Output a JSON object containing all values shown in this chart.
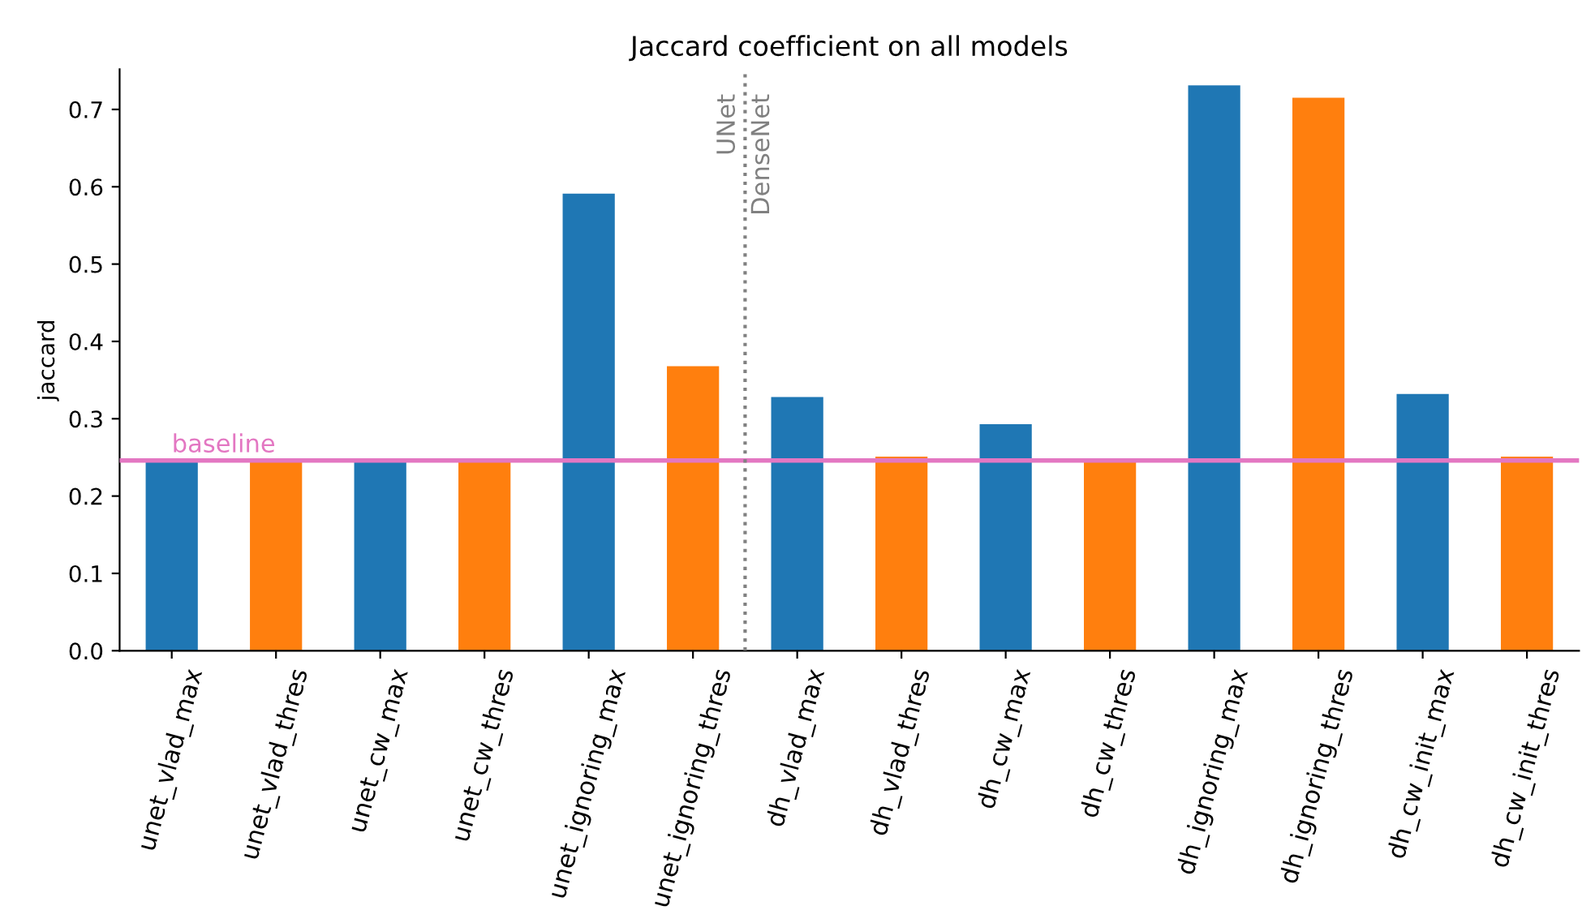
{
  "chart_data": {
    "type": "bar",
    "title": "Jaccard coefficient on all models",
    "ylabel": "jaccard",
    "categories": [
      "unet_vlad_max",
      "unet_vlad_thres",
      "unet_cw_max",
      "unet_cw_thres",
      "unet_ignoring_max",
      "unet_ignoring_thres",
      "dh_vlad_max",
      "dh_vlad_thres",
      "dh_cw_max",
      "dh_cw_thres",
      "dh_ignoring_max",
      "dh_ignoring_thres",
      "dh_cw_init_max",
      "dh_cw_init_thres"
    ],
    "values": [
      0.245,
      0.245,
      0.245,
      0.245,
      0.591,
      0.368,
      0.328,
      0.251,
      0.293,
      0.247,
      0.731,
      0.715,
      0.332,
      0.251
    ],
    "colors": [
      "#1f77b4",
      "#ff7f0e",
      "#1f77b4",
      "#ff7f0e",
      "#1f77b4",
      "#ff7f0e",
      "#1f77b4",
      "#ff7f0e",
      "#1f77b4",
      "#ff7f0e",
      "#1f77b4",
      "#ff7f0e",
      "#1f77b4",
      "#ff7f0e"
    ],
    "ylim": [
      0,
      0.752
    ],
    "yticks": [
      {
        "value": 0,
        "label": "0.0"
      },
      {
        "value": 0.1,
        "label": "0.1"
      },
      {
        "value": 0.2,
        "label": "0.2"
      },
      {
        "value": 0.3,
        "label": "0.3"
      },
      {
        "value": 0.4,
        "label": "0.4"
      },
      {
        "value": 0.5,
        "label": "0.5"
      },
      {
        "value": 0.6,
        "label": "0.6"
      },
      {
        "value": 0.7,
        "label": "0.7"
      }
    ],
    "ref_lines": [
      {
        "axis": "y",
        "value": 0.246,
        "label": "baseline",
        "color": "#e377c2",
        "line_style": "solid"
      }
    ],
    "annotations": [
      "UNet",
      "DenseNet"
    ],
    "grid": false,
    "legend": false
  }
}
